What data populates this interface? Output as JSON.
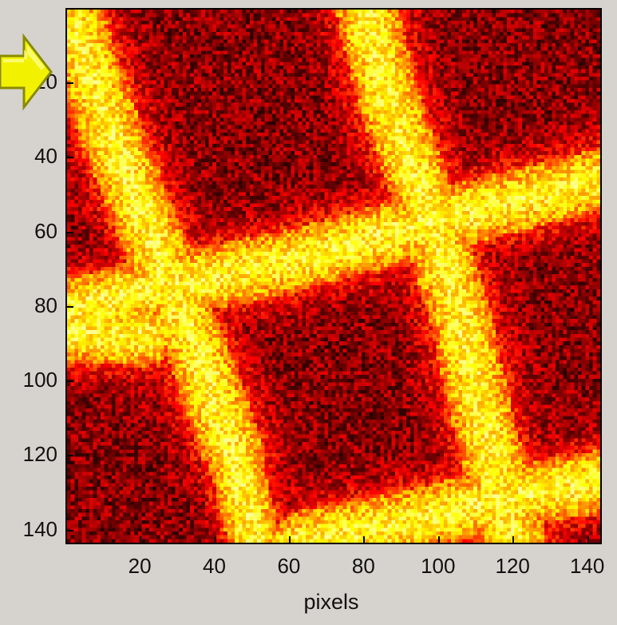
{
  "chart_data": {
    "type": "heatmap",
    "title": "",
    "xlabel": "pixels",
    "ylabel": "",
    "xlim": [
      0.5,
      143.5
    ],
    "ylim": [
      0.5,
      143.5
    ],
    "y_reversed": true,
    "x_ticks": [
      "20",
      "40",
      "60",
      "80",
      "100",
      "120",
      "140"
    ],
    "y_ticks": [
      "20",
      "40",
      "60",
      "80",
      "100",
      "120",
      "140"
    ],
    "colormap": "hot",
    "grid_size": 143,
    "colors": {
      "background": "#d6d3ce",
      "cell_dark": "#8a0000",
      "cell_mid": "#e02000",
      "cell_bright": "#ffe020",
      "arrow_fill": "#f2f200",
      "arrow_stroke": "#8a8a00"
    }
  },
  "annotations": {
    "arrow_icon": "right-arrow-icon"
  }
}
